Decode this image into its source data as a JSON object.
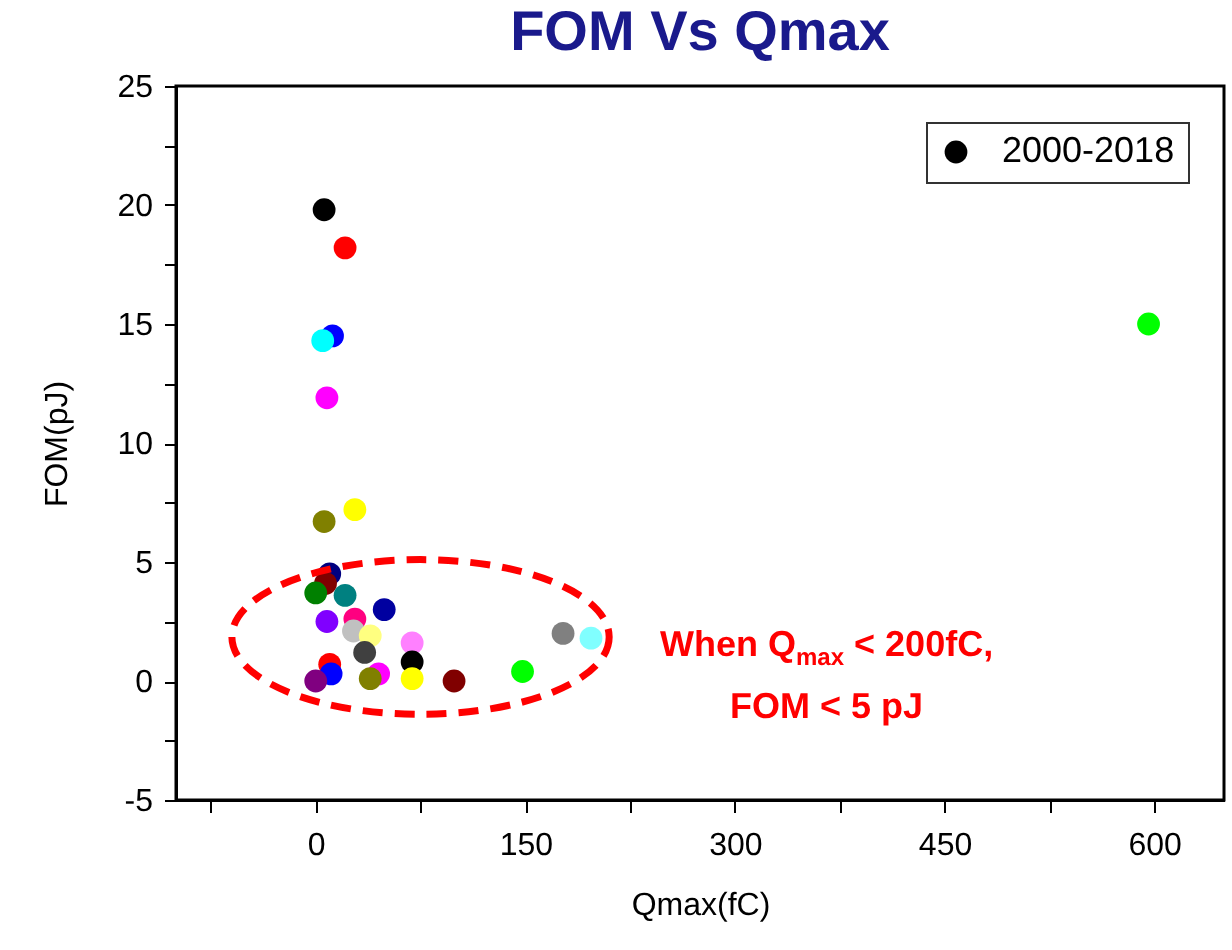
{
  "chart_data": {
    "type": "scatter",
    "title": "FOM Vs Qmax",
    "xlabel": "Qmax(fC)",
    "ylabel": "FOM(pJ)",
    "annotations": [
      "When Q$_{max}$ < 200fC,",
      "FOM < 5 pJ"
    ],
    "xlim": [
      -100,
      650
    ],
    "xticks": [
      {
        "value": -75,
        "label": null
      },
      0,
      {
        "value": 75,
        "label": null
      },
      150,
      {
        "value": 225,
        "label": null
      },
      300,
      {
        "value": 375,
        "label": null
      },
      450,
      {
        "value": 525,
        "label": null
      },
      600
    ],
    "ylim": [
      -5,
      25
    ],
    "yticks": [
      -5,
      {
        "value": -2.5,
        "label": null
      },
      0,
      {
        "value": 2.5,
        "label": null
      },
      5,
      {
        "value": 7.5,
        "label": null
      },
      10,
      {
        "value": 12.5,
        "label": null
      },
      15,
      {
        "value": 17.5,
        "label": null
      },
      20,
      {
        "value": 22.5,
        "label": null
      },
      25
    ],
    "grid": false,
    "legend": "top right",
    "marker": "circle",
    "series": [
      {
        "name": "2000-2018",
        "color": "#000000",
        "x": [
          6,
          21,
          12,
          5,
          8,
          28,
          6,
          10,
          7,
          0,
          21,
          49,
          8,
          28,
          27,
          39,
          69,
          35,
          177,
          197,
          10,
          69,
          11,
          0,
          45,
          39,
          69,
          99,
          148,
          596
        ],
        "values": [
          19.8,
          18.2,
          14.5,
          14.3,
          11.9,
          7.2,
          6.7,
          4.5,
          4.1,
          3.7,
          3.6,
          3.0,
          2.5,
          2.6,
          2.1,
          1.9,
          1.6,
          1.2,
          2.0,
          1.8,
          0.7,
          0.8,
          0.3,
          0.0,
          0.3,
          0.1,
          0.1,
          0.0,
          0.4,
          15.0
        ],
        "colors": [
          "#000000",
          "#ff0000",
          "#0000ff",
          "#00ffff",
          "#ff00ff",
          "#ffff00",
          "#808000",
          "#000080",
          "#800000",
          "#008000",
          "#008080",
          "#0000a0",
          "#8000ff",
          "#ff0080",
          "#c0c0c0",
          "#ffff80",
          "#ff80ff",
          "#404040",
          "#808080",
          "#80ffff",
          "#ff0000",
          "#000000",
          "#0000ff",
          "#800080",
          "#ff00ff",
          "#808000",
          "#ffff00",
          "#800000",
          "#00ff00",
          "#00ff00"
        ]
      }
    ]
  }
}
